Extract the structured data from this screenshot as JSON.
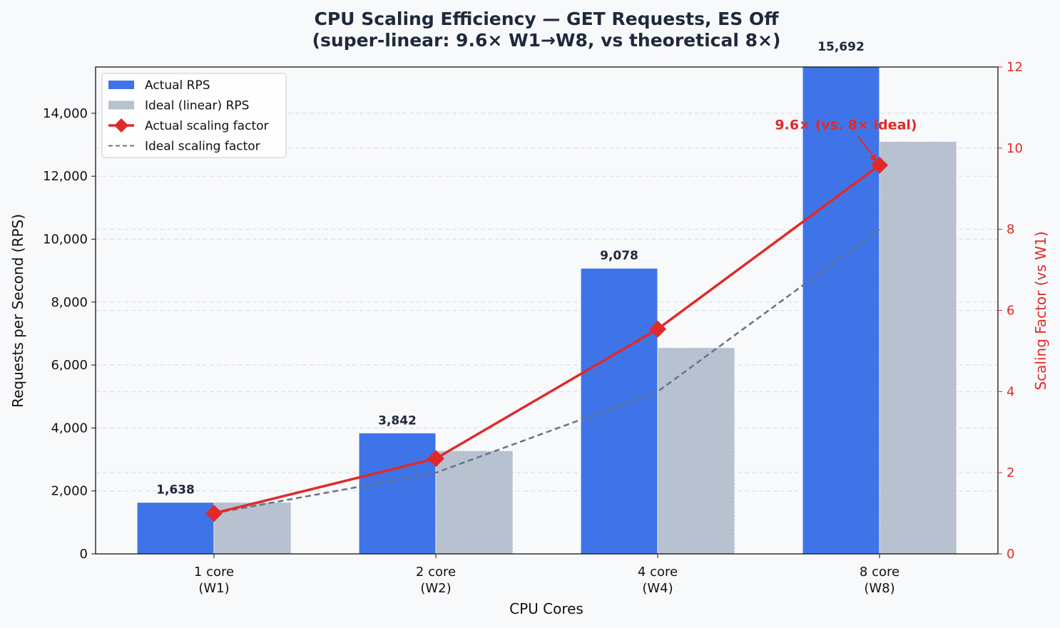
{
  "chart_data": {
    "type": "bar",
    "title": "CPU Scaling Efficiency — GET Requests, ES Off",
    "subtitle": "(super-linear: 9.6× W1→W8, vs theoretical 8×)",
    "xlabel": "CPU Cores",
    "ylabel": "Requests per Second (RPS)",
    "y2label": "Scaling Factor (vs W1)",
    "categories": [
      "1 core\n(W1)",
      "2 core\n(W2)",
      "4 core\n(W4)",
      "8 core\n(W8)"
    ],
    "category_lines": [
      [
        "1 core",
        "(W1)"
      ],
      [
        "2 core",
        "(W2)"
      ],
      [
        "4 core",
        "(W4)"
      ],
      [
        "8 core",
        "(W8)"
      ]
    ],
    "ylim": [
      0,
      15470
    ],
    "y2lim": [
      0,
      12
    ],
    "yticks": [
      0,
      2000,
      4000,
      6000,
      8000,
      10000,
      12000,
      14000
    ],
    "ytick_labels": [
      "0",
      "2,000",
      "4,000",
      "6,000",
      "8,000",
      "10,000",
      "12,000",
      "14,000"
    ],
    "y2ticks": [
      0,
      2,
      4,
      6,
      8,
      10,
      12
    ],
    "y2tick_labels": [
      "0",
      "2",
      "4",
      "6",
      "8",
      "10",
      "12"
    ],
    "grid": true,
    "legend_position": "top-left",
    "series": [
      {
        "name": "Actual RPS",
        "kind": "bar",
        "axis": "left",
        "color": "#3f74e8",
        "values": [
          1638,
          3842,
          9078,
          15692
        ],
        "labels": [
          "1,638",
          "3,842",
          "9,078",
          "15,692"
        ]
      },
      {
        "name": "Ideal (linear) RPS",
        "kind": "bar",
        "axis": "left",
        "color": "#b8c1cf",
        "values": [
          1638,
          3276,
          6552,
          13104
        ]
      },
      {
        "name": "Actual scaling factor",
        "kind": "line",
        "axis": "right",
        "color": "#e02a2a",
        "values": [
          1.0,
          2.35,
          5.54,
          9.58
        ]
      },
      {
        "name": "Ideal scaling factor",
        "kind": "line",
        "axis": "right",
        "color": "#64748b",
        "dashed": true,
        "values": [
          1,
          2,
          4,
          8
        ]
      }
    ],
    "annotation": {
      "text": "9.6× (vs. 8× ideal)",
      "color": "#e02a2a",
      "category_index": 3,
      "value": 9.58
    }
  }
}
